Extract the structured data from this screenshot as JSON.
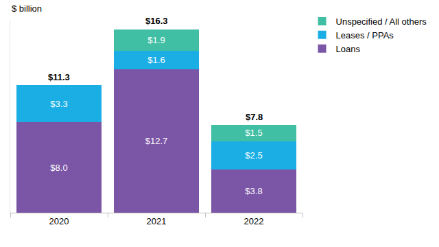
{
  "chart_data": {
    "type": "bar",
    "ylabel": "$ billion",
    "categories": [
      "2020",
      "2021",
      "2022"
    ],
    "series": [
      {
        "name": "Loans",
        "color": "#7b55a6",
        "values": [
          8.0,
          12.7,
          3.8
        ],
        "value_labels": [
          "$8.0",
          "$12.7",
          "$3.8"
        ]
      },
      {
        "name": "Leases / PPAs",
        "color": "#1aaee5",
        "values": [
          3.3,
          1.6,
          2.5
        ],
        "value_labels": [
          "$3.3",
          "$1.6",
          "$2.5"
        ]
      },
      {
        "name": "Unspecified / All others",
        "color": "#40bfa4",
        "values": [
          null,
          1.9,
          1.5
        ],
        "value_labels": [
          null,
          "$1.9",
          "$1.5"
        ]
      }
    ],
    "totals": [
      11.3,
      16.3,
      7.8
    ],
    "total_labels": [
      "$11.3",
      "$16.3",
      "$7.8"
    ],
    "ylim": [
      0,
      17
    ],
    "stacked": true,
    "data_labels": true,
    "legend": "top right",
    "tick_labels": "x"
  }
}
